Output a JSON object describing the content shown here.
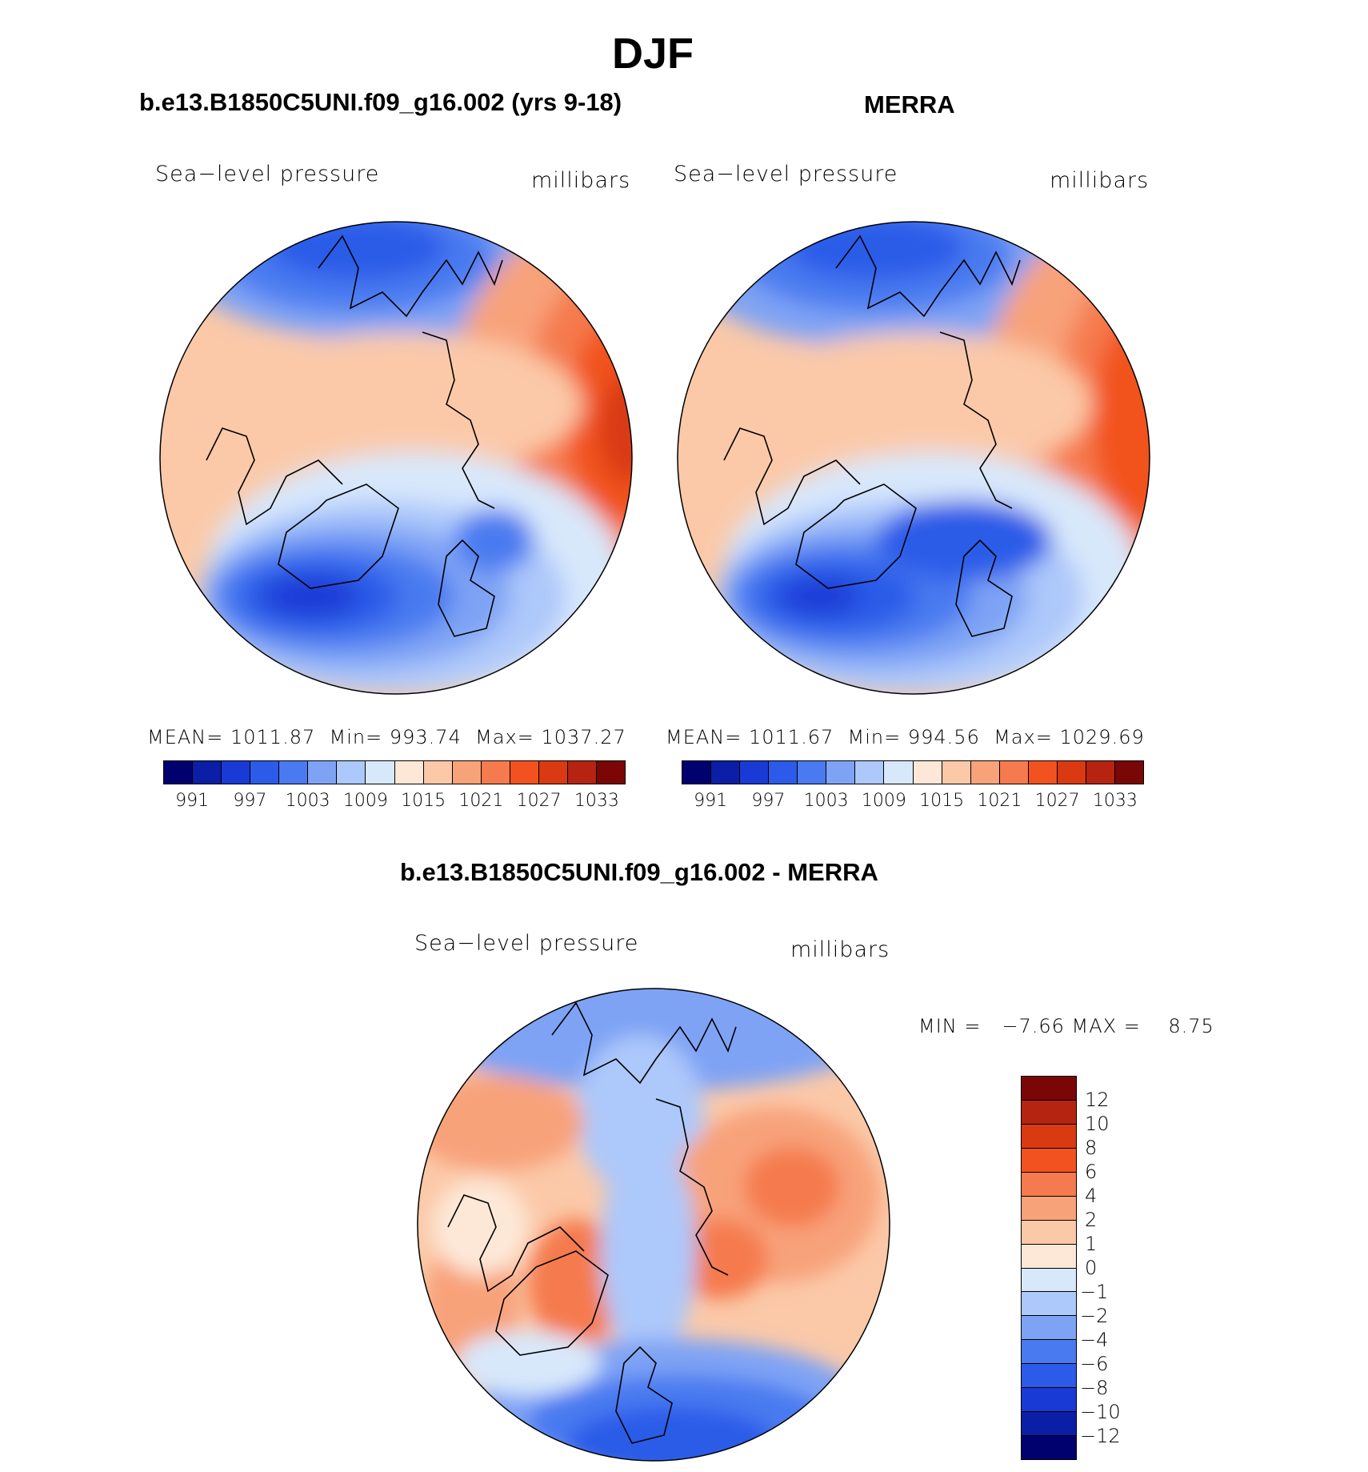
{
  "title": "DJF",
  "panels": [
    {
      "heading": "b.e13.B1850C5UNI.f09_g16.002 (yrs 9-18)",
      "variable": "Sea−level pressure",
      "units": "millibars",
      "stats": {
        "mean_label": "MEAN=",
        "mean": "1011.87",
        "min_label": "Min=",
        "min": "993.74",
        "max_label": "Max=",
        "max": "1037.27"
      }
    },
    {
      "heading": "MERRA",
      "variable": "Sea−level pressure",
      "units": "millibars",
      "stats": {
        "mean_label": "MEAN=",
        "mean": "1011.67",
        "min_label": "Min=",
        "min": "994.56",
        "max_label": "Max=",
        "max": "1029.69"
      }
    }
  ],
  "difference": {
    "heading": "b.e13.B1850C5UNI.f09_g16.002 - MERRA",
    "variable": "Sea−level pressure",
    "units": "millibars",
    "stats_text": "MIN =   −7.66 MAX =    8.75"
  },
  "colorbar_abs": {
    "colors": [
      "#00006e",
      "#0a1fa6",
      "#1a3ad6",
      "#2b5be8",
      "#4a7af0",
      "#7ea3f5",
      "#adc8fa",
      "#d8e8fb",
      "#fde8d8",
      "#fbc9a8",
      "#f8a27a",
      "#f57a4e",
      "#f2521f",
      "#d93a12",
      "#b52410",
      "#7a0606"
    ],
    "ticks": [
      "991",
      "997",
      "1003",
      "1009",
      "1015",
      "1021",
      "1027",
      "1033"
    ]
  },
  "colorbar_diff": {
    "colors": [
      "#7a0606",
      "#b52410",
      "#d93a12",
      "#f2521f",
      "#f57a4e",
      "#f8a27a",
      "#fbc9a8",
      "#fde8d8",
      "#d8e8fb",
      "#adc8fa",
      "#7ea3f5",
      "#4a7af0",
      "#2b5be8",
      "#1a3ad6",
      "#0a1fa6",
      "#00006e"
    ],
    "ticks": [
      "12",
      "10",
      "8",
      "6",
      "4",
      "2",
      "1",
      "0",
      "−1",
      "−2",
      "−4",
      "−6",
      "−8",
      "−10",
      "−12"
    ]
  }
}
